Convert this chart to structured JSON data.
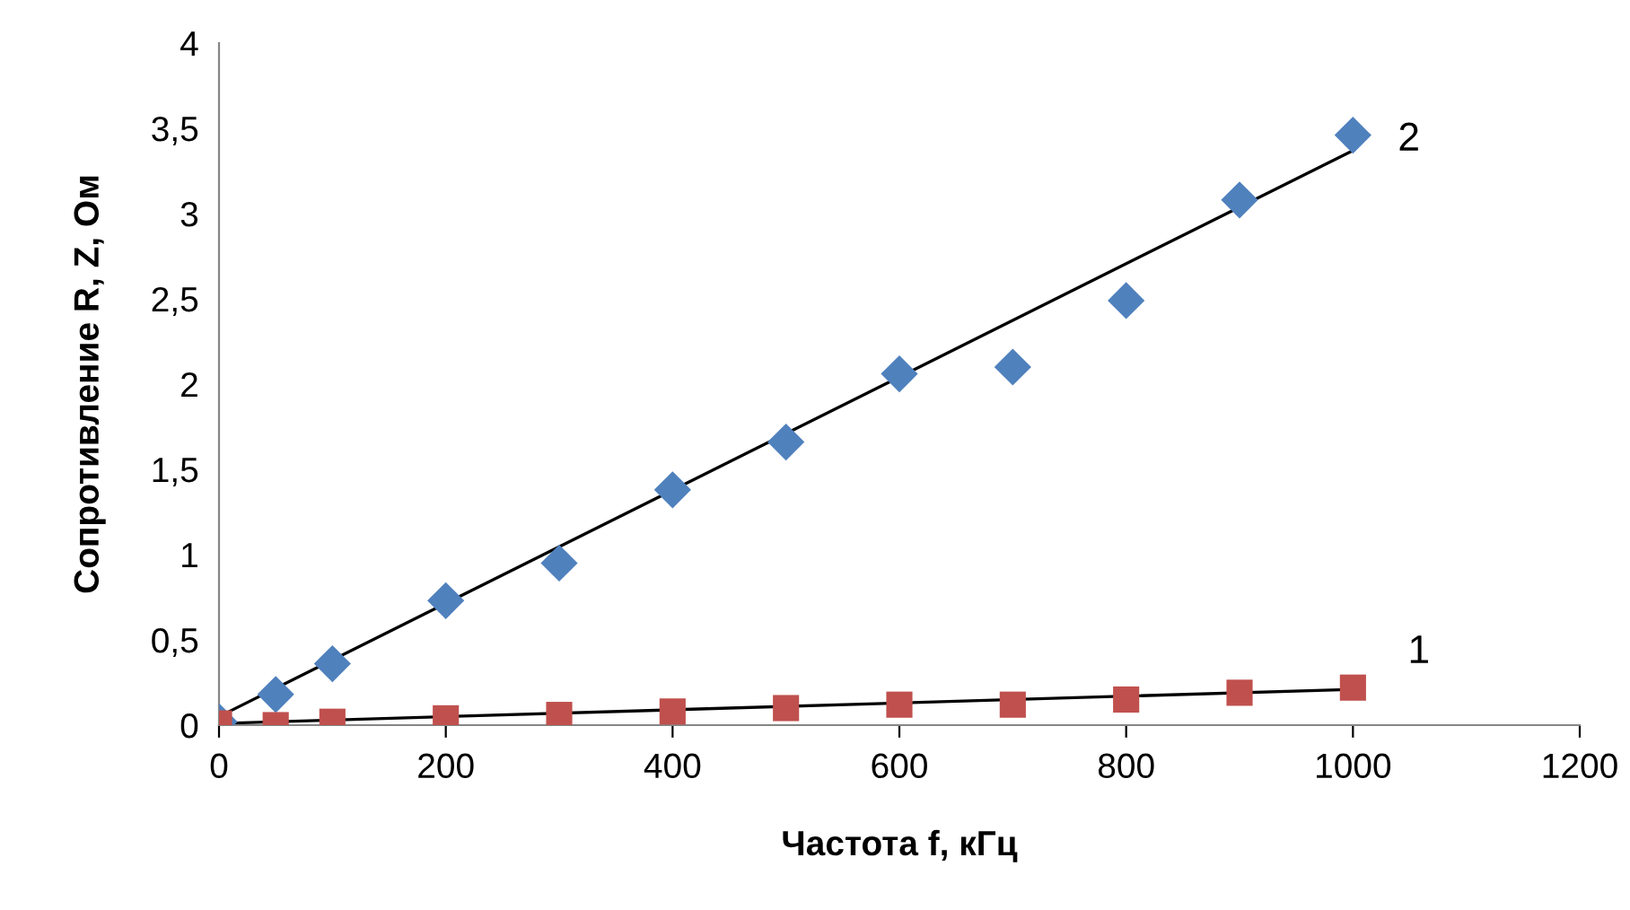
{
  "chart_data": {
    "type": "scatter",
    "xlabel": "Частота f, кГц",
    "ylabel": "Сопротивление R, Z, Ом",
    "xlim": [
      0,
      1200
    ],
    "xticks": [
      0,
      200,
      400,
      600,
      800,
      1000,
      1200
    ],
    "ylim": [
      0,
      4
    ],
    "yticks": [
      0,
      {
        "value": 0.5,
        "label": "0,5"
      },
      1,
      {
        "value": 1.5,
        "label": "1,5"
      },
      2,
      {
        "value": 2.5,
        "label": "2,5"
      },
      3,
      {
        "value": 3.5,
        "label": "3,5"
      },
      4
    ],
    "grid": false,
    "legend": false,
    "series": [
      {
        "type": "line",
        "color": "#000000",
        "marker": "none",
        "line_style": "solid",
        "x": [
          0,
          1000
        ],
        "values": [
          0.05,
          3.37
        ]
      },
      {
        "type": "line",
        "color": "#000000",
        "marker": "none",
        "line_style": "solid",
        "x": [
          0,
          1000
        ],
        "values": [
          0.01,
          0.21
        ]
      },
      {
        "color": "#4f81bd",
        "marker": "diamond",
        "x": [
          0,
          50,
          100,
          200,
          300,
          400,
          500,
          600,
          700,
          800,
          900,
          1000
        ],
        "values": [
          0.02,
          0.18,
          0.36,
          0.73,
          0.95,
          1.38,
          1.66,
          2.06,
          2.1,
          2.49,
          3.08,
          3.46
        ]
      },
      {
        "color": "#c0504d",
        "marker": "square",
        "x": [
          0,
          50,
          100,
          200,
          300,
          400,
          500,
          600,
          700,
          800,
          900,
          1000
        ],
        "values": [
          0.01,
          0.0,
          0.02,
          0.04,
          0.06,
          0.08,
          0.1,
          0.12,
          0.12,
          0.15,
          0.19,
          0.22
        ]
      }
    ],
    "annotations": [
      "2",
      "1"
    ]
  }
}
